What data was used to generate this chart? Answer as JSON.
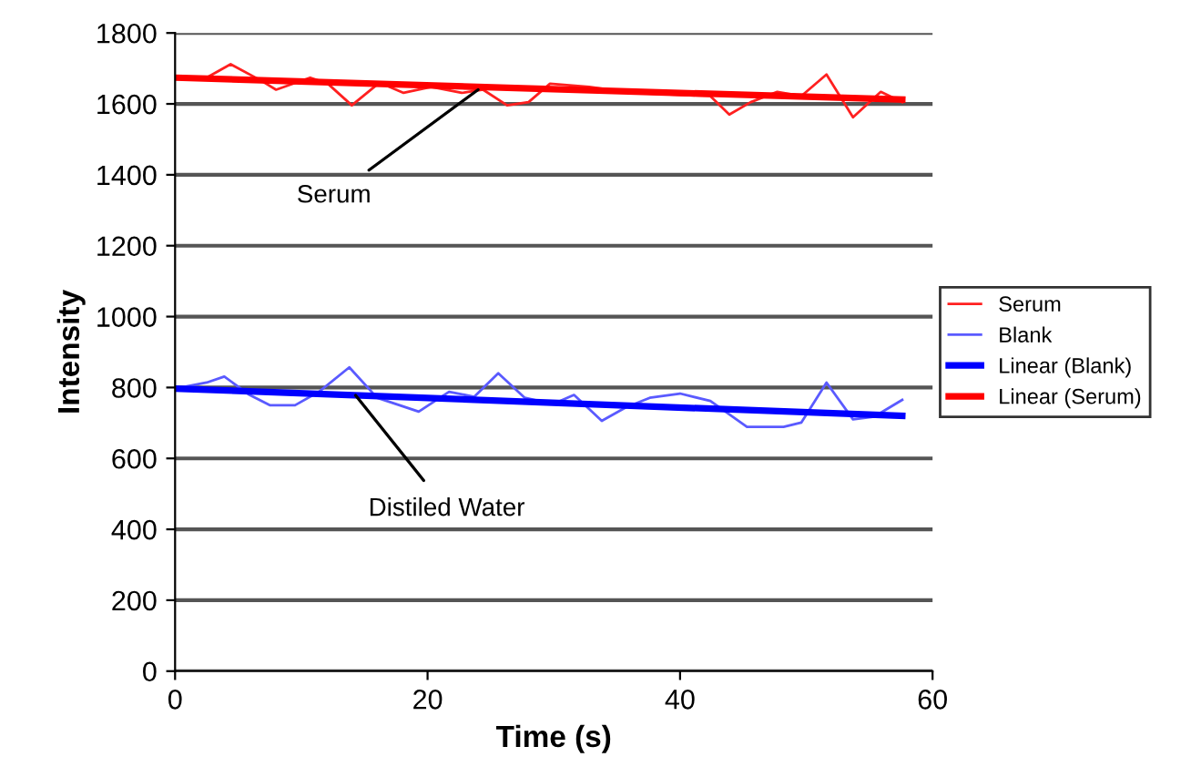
{
  "chart_data": {
    "type": "line",
    "xlabel": "Time (s)",
    "ylabel": "Intensity",
    "xlim": [
      0,
      60
    ],
    "xticks": [
      0,
      20,
      40,
      60
    ],
    "ylim": [
      0,
      1800
    ],
    "yticks": [
      0,
      200,
      400,
      600,
      800,
      1000,
      1200,
      1400,
      1600,
      1800
    ],
    "grid": "y",
    "legend": "right",
    "marker": "none",
    "line_style": "solid",
    "series": [
      {
        "name": "Serum",
        "color": "#ff2020",
        "x": [
          0.3,
          2.5,
          4.4,
          6.8,
          8,
          10.7,
          12.1,
          14,
          16.2,
          18.1,
          20.3,
          22.7,
          24.4,
          26.3,
          28,
          29.7,
          32.8,
          36.2,
          42.4,
          43.9,
          45.6,
          47.7,
          49.6,
          51.6,
          53.7,
          55.9,
          57.6
        ],
        "values": [
          1674,
          1674,
          1712,
          1666,
          1640,
          1674,
          1657,
          1596,
          1660,
          1631,
          1648,
          1631,
          1640,
          1596,
          1605,
          1657,
          1648,
          1631,
          1622,
          1570,
          1605,
          1634,
          1622,
          1683,
          1562,
          1634,
          1605
        ]
      },
      {
        "name": "Blank",
        "color": "#5a5aff",
        "x": [
          0,
          2.5,
          3.9,
          5.9,
          7.5,
          9.5,
          11.4,
          13.8,
          16,
          19.3,
          21.7,
          23.7,
          25.6,
          27.7,
          29.9,
          31.6,
          33.8,
          35.7,
          37.6,
          40,
          42.4,
          45.3,
          48.2,
          49.6,
          51.6,
          53.7,
          55.4,
          57.6
        ],
        "values": [
          797,
          814,
          831,
          779,
          750,
          750,
          788,
          857,
          771,
          732,
          788,
          774,
          840,
          771,
          753,
          779,
          706,
          744,
          771,
          783,
          762,
          689,
          689,
          701,
          814,
          710,
          718,
          765
        ]
      },
      {
        "name": "Linear (Blank)",
        "color": "#0000ff",
        "x": [
          0,
          57.6
        ],
        "values": [
          797,
          720
        ]
      },
      {
        "name": "Linear (Serum)",
        "color": "#ff0000",
        "x": [
          0,
          57.6
        ],
        "values": [
          1674,
          1612
        ]
      }
    ],
    "annotations": [
      {
        "text": "Serum",
        "x": 24,
        "y": 1640
      },
      {
        "text": "Distiled Water",
        "x": 14.3,
        "y": 778
      }
    ]
  }
}
